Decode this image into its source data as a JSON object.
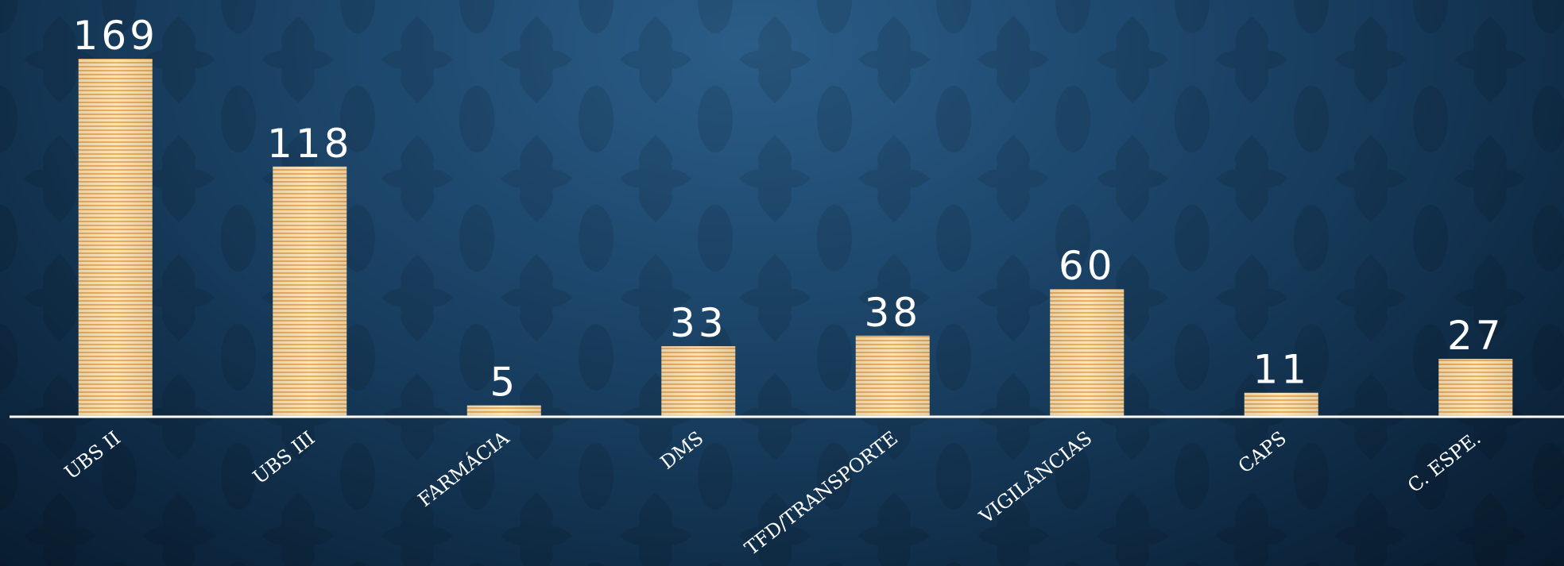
{
  "chart_data": {
    "type": "bar",
    "categories": [
      "UBS II",
      "UBS III",
      "FARMÁCIA",
      "DMS",
      "TFD/TRANSPORTE",
      "VIGILÂNCIAS",
      "CAPS",
      "C. ESPE."
    ],
    "values": [
      169,
      118,
      5,
      33,
      38,
      60,
      11,
      27
    ],
    "title": "",
    "xlabel": "",
    "ylabel": "",
    "ylim": [
      0,
      169
    ],
    "grid": false,
    "legend": "none",
    "colors": {
      "bar_light": "#fde3b6",
      "bar_dark": "#e9b063",
      "baseline": "#ffffff",
      "label": "#ffffff"
    }
  }
}
